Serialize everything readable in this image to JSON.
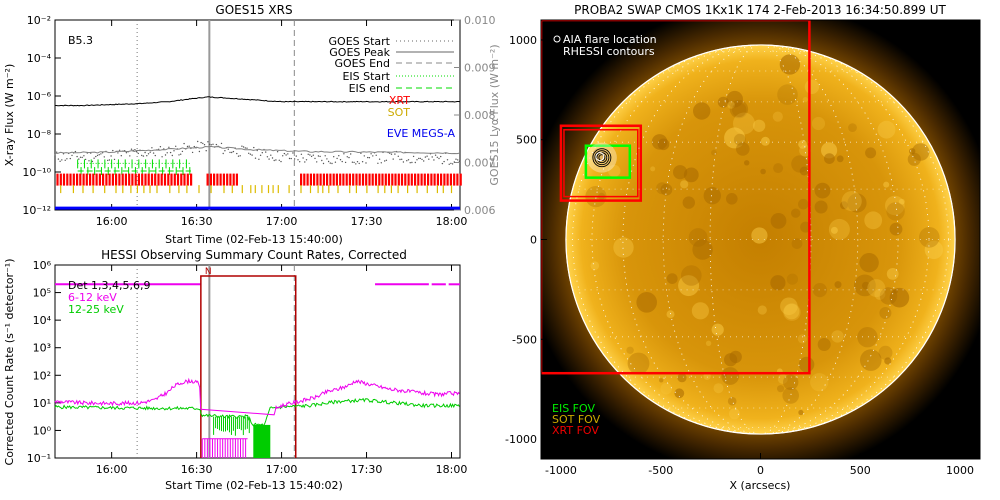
{
  "colors": {
    "goes_long": "#000000",
    "goes_short": "#555555",
    "lya": "#808080",
    "eis": "#00dd00",
    "xrt": "#ff0000",
    "sot": "#ddbb00",
    "eve": "#0000ff",
    "hessi_det": "#b00000",
    "hessi_6_12": "#ee00ee",
    "hessi_12_25": "#00cc00",
    "swap_bg": "#000000",
    "sun_fill": "#d89a0c",
    "limb": "#ffffff",
    "box_xrt": "#ff0000",
    "box_eis": "#00ff00"
  },
  "chart_data": [
    {
      "type": "line",
      "title": "GOES15 XRS",
      "xlabel": "Start Time (02-Feb-13 15:40:00)",
      "ylabel": "X-ray Flux (W m⁻²)",
      "ylabel_right": "GOES15 Lyα Flux (W m⁻²)",
      "xlim_minutes": [
        0,
        143
      ],
      "xticks": [
        "16:00",
        "16:30",
        "17:00",
        "17:30",
        "18:00"
      ],
      "xtick_minutes": [
        20,
        50,
        80,
        110,
        140
      ],
      "ylim_log10": [
        -12,
        -2
      ],
      "yticks": [
        "10⁻²",
        "10⁻⁴",
        "10⁻⁶",
        "10⁻⁸",
        "10⁻¹⁰",
        "10⁻¹²"
      ],
      "ylim_right": [
        0.006,
        0.01
      ],
      "yticks_right": [
        "0.010",
        "0.009",
        "0.008",
        "0.007",
        "0.006"
      ],
      "class_label": "B5.3",
      "legend": {
        "goes_start": "GOES Start",
        "goes_peak": "GOES Peak",
        "goes_end": "GOES End",
        "eis_start": "EIS Start",
        "eis_end": "EIS end",
        "xrt": "XRT",
        "sot": "SOT",
        "eve": "EVE MEGS-A"
      },
      "markers_minutes": {
        "goes_start": 29,
        "goes_peak": 54.5,
        "goes_end": 84.5
      },
      "series": [
        {
          "name": "GOES long (1-8 Å)",
          "x": [
            0,
            10,
            20,
            30,
            40,
            48,
            54,
            60,
            70,
            80,
            90,
            100,
            110,
            120,
            130,
            143
          ],
          "log10_values": [
            -6.5,
            -6.5,
            -6.45,
            -6.4,
            -6.3,
            -6.15,
            -6.05,
            -6.1,
            -6.2,
            -6.3,
            -6.3,
            -6.3,
            -6.3,
            -6.3,
            -6.3,
            -6.3
          ]
        },
        {
          "name": "GOES short (0.5-4 Å)",
          "x": [
            0,
            10,
            20,
            30,
            40,
            50,
            55,
            60,
            70,
            80,
            90,
            100,
            110,
            120,
            130,
            143
          ],
          "log10_values": [
            -9.2,
            -9.2,
            -9.1,
            -9.0,
            -8.9,
            -8.7,
            -8.6,
            -8.8,
            -9.0,
            -9.2,
            -9.3,
            -9.3,
            -9.3,
            -9.2,
            -9.3,
            -9.3
          ]
        },
        {
          "name": "GOES Lyα",
          "x": [
            0,
            20,
            40,
            55,
            70,
            90,
            110,
            130,
            143
          ],
          "values": [
            0.0072,
            0.00722,
            0.00728,
            0.00733,
            0.00727,
            0.00723,
            0.00722,
            0.00721,
            0.0072
          ]
        }
      ],
      "xrt_intervals_minutes": [
        [
          0,
          48
        ],
        [
          53,
          64
        ],
        [
          86,
          143
        ]
      ],
      "eis_interval_minutes": [
        8,
        48
      ],
      "eve_log10": -11.9
    },
    {
      "type": "line",
      "title": "HESSI Observing Summary Count Rates, Corrected",
      "xlabel": "Start Time (02-Feb-13 15:40:02)",
      "ylabel": "Corrected Count Rate (s⁻¹ detector⁻¹)",
      "xlim_minutes": [
        0,
        143
      ],
      "xticks": [
        "16:00",
        "16:30",
        "17:00",
        "17:30",
        "18:00"
      ],
      "xtick_minutes": [
        20,
        50,
        80,
        110,
        140
      ],
      "ylim_log10": [
        -1,
        6
      ],
      "yticks": [
        "10⁶",
        "10⁵",
        "10⁴",
        "10³",
        "10²",
        "10¹",
        "10⁰",
        "10⁻¹"
      ],
      "legend": {
        "det": "Det 1,3,4,5,6,9",
        "band1": "6-12 keV",
        "band2": "12-25 keV"
      },
      "flag_label": "N",
      "series": [
        {
          "name": "6-12 keV",
          "x": [
            0,
            10,
            20,
            30,
            35,
            40,
            42,
            45,
            48,
            51,
            52,
            56,
            62,
            68,
            74,
            78,
            80,
            84,
            88,
            92,
            96,
            100,
            104,
            106,
            110,
            114,
            118,
            122,
            126,
            130,
            135,
            140,
            143
          ],
          "log10_values": [
            1.05,
            1.0,
            0.98,
            1.0,
            1.1,
            1.4,
            1.6,
            1.75,
            1.8,
            1.7,
            -0.3,
            -0.5,
            -0.6,
            -0.5,
            -0.4,
            0.8,
            0.9,
            1.0,
            1.1,
            1.2,
            1.4,
            1.5,
            1.65,
            1.8,
            1.7,
            1.6,
            1.5,
            1.45,
            1.4,
            1.35,
            1.3,
            1.35,
            1.3
          ]
        },
        {
          "name": "12-25 keV",
          "x": [
            0,
            20,
            40,
            51,
            52,
            60,
            68,
            70,
            74,
            76,
            80,
            90,
            100,
            110,
            120,
            130,
            143
          ],
          "log10_values": [
            0.85,
            0.82,
            0.8,
            0.8,
            0.55,
            0.5,
            0.5,
            0.2,
            0.2,
            0.8,
            0.85,
            0.9,
            1.05,
            1.1,
            1.0,
            0.9,
            0.9
          ]
        }
      ],
      "attenuator_minutes": [
        51.5,
        85
      ],
      "saa_intervals_minutes": [
        [
          113,
          132
        ],
        [
          133,
          138
        ],
        [
          139,
          143
        ]
      ],
      "markers_minutes": {
        "goes_start": 29,
        "goes_peak": 54.5,
        "goes_end": 84.5
      }
    },
    {
      "type": "heatmap",
      "title": "PROBA2 SWAP CMOS 1Kx1K 174  2-Feb-2013 16:34:50.899 UT",
      "xlabel": "X (arcsecs)",
      "ylabel": "",
      "xlim": [
        -1100,
        1100
      ],
      "ylim": [
        -1100,
        1100
      ],
      "xticks": [
        "-1000",
        "-500",
        "0",
        "500",
        "1000"
      ],
      "yticks": [
        "1000",
        "500",
        "0",
        "-500",
        "-1000"
      ],
      "legend": {
        "aia": "AIA flare location",
        "rhessi": "RHESSI contours",
        "eis": "EIS FOV",
        "sot": "SOT FOV",
        "xrt": "XRT FOV"
      },
      "solar_radius_arcsec": 975,
      "flare_location_arcsec": [
        -795,
        410
      ],
      "fov_boxes": [
        {
          "name": "xrt-large",
          "x": [
            -1100,
            245
          ],
          "y": [
            -670,
            1100
          ]
        },
        {
          "name": "xrt-small",
          "x": [
            -1000,
            -600
          ],
          "y": [
            195,
            570
          ]
        },
        {
          "name": "eis",
          "x": [
            -875,
            -655
          ],
          "y": [
            310,
            470
          ]
        }
      ]
    }
  ]
}
